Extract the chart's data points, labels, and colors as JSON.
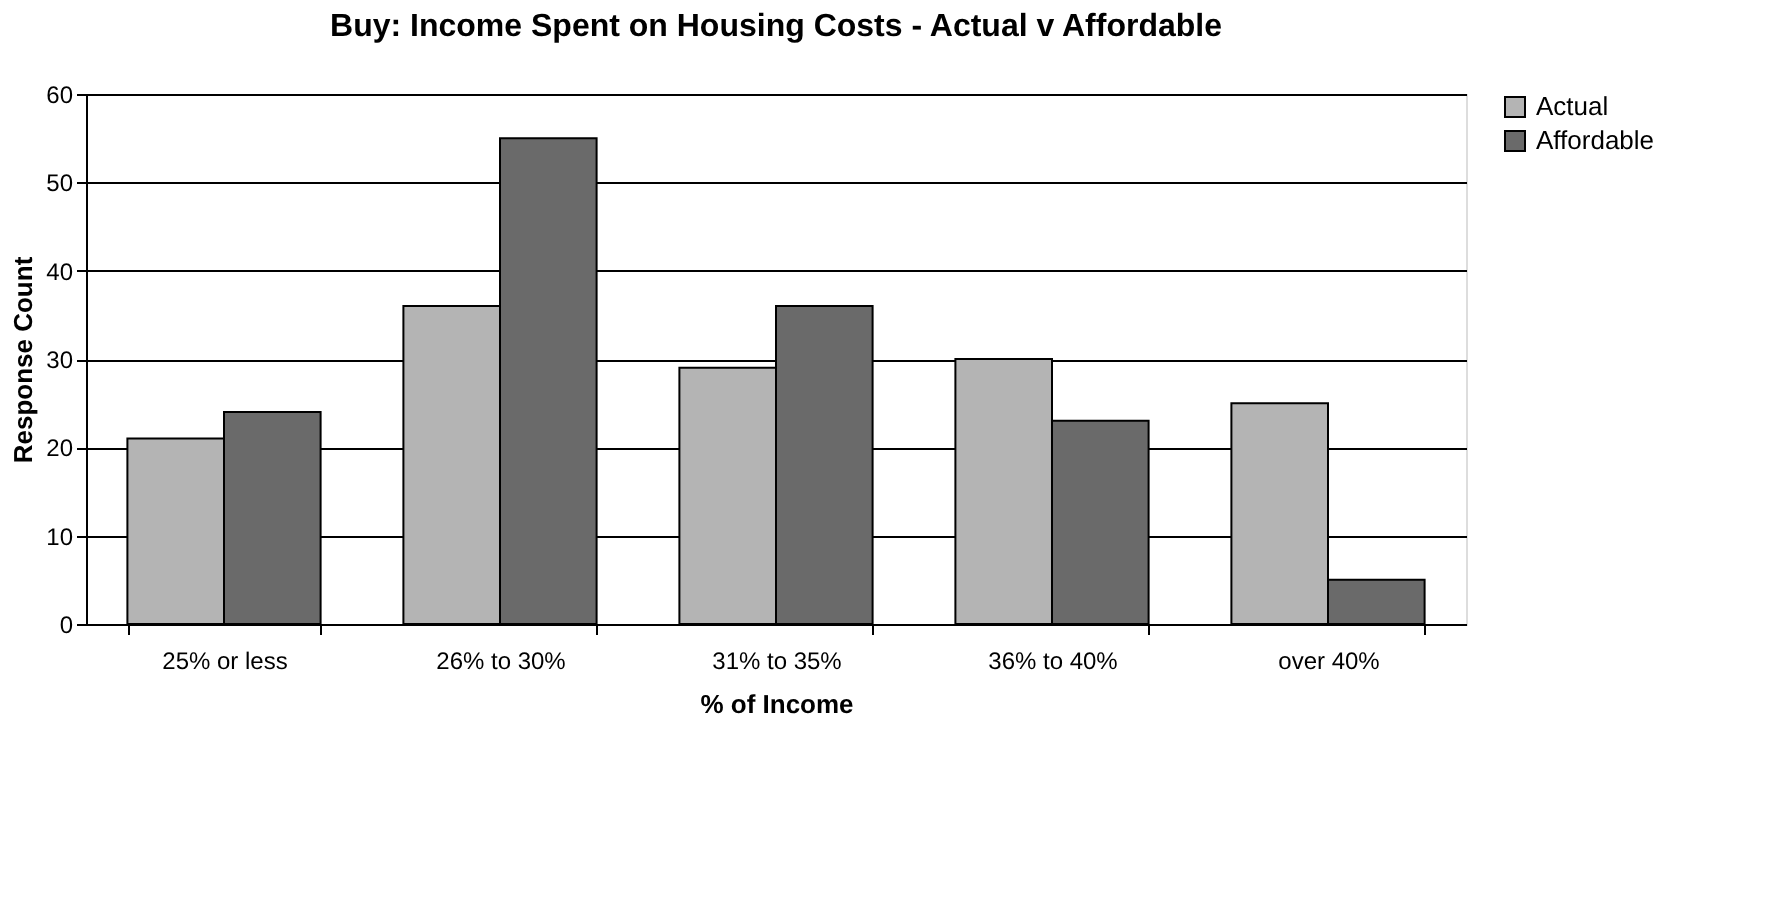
{
  "chart_data": {
    "type": "bar",
    "title": "Buy: Income Spent on Housing Costs - Actual v Affordable",
    "xlabel": "% of Income",
    "ylabel": "Response Count",
    "categories": [
      "25% or less",
      "26% to 30%",
      "31% to 35%",
      "36% to 40%",
      "over 40%"
    ],
    "series": [
      {
        "name": "Actual",
        "color": "#b4b4b4",
        "values": [
          21,
          36,
          29,
          30,
          25
        ]
      },
      {
        "name": "Affordable",
        "color": "#6a6a6a",
        "values": [
          24,
          55,
          36,
          23,
          5
        ]
      }
    ],
    "ylim": [
      0,
      60
    ],
    "yticks": [
      0,
      10,
      20,
      30,
      40,
      50,
      60
    ],
    "grid": "y",
    "legend": "right"
  }
}
